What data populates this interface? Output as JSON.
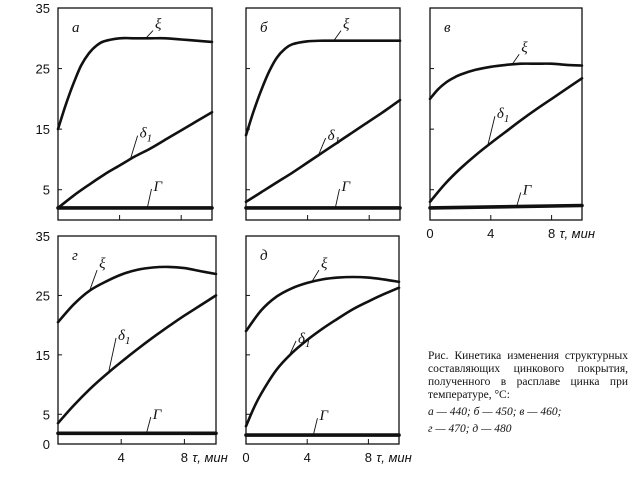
{
  "caption": {
    "text": "Рис. Кинетика изменения структурных составляющих цинкового покрытия, полученного в расплаве цинка при температуре, °С:",
    "legend_line1": "а — 440;  б — 450;  в — 460;",
    "legend_line2": "г — 470;  д — 480"
  },
  "chart_data": [
    {
      "type": "line",
      "panel_label": "а",
      "ylim": [
        0,
        35
      ],
      "xlim": [
        0,
        10
      ],
      "y_ticks": [
        "35",
        "25",
        "15",
        "5"
      ],
      "x_ticks": [],
      "series": [
        {
          "name": "ξ",
          "x": [
            0,
            0.5,
            1,
            1.5,
            2,
            2.5,
            3,
            4,
            5,
            6,
            7,
            8,
            9,
            10
          ],
          "y": [
            15,
            19,
            22.5,
            25.5,
            27.5,
            28.8,
            29.5,
            30,
            30,
            30,
            30,
            29.8,
            29.6,
            29.4
          ]
        },
        {
          "name": "δ1",
          "x": [
            0,
            1,
            2,
            3,
            4,
            5,
            6,
            7,
            8,
            9,
            10
          ],
          "y": [
            2,
            4,
            5.8,
            7.5,
            9,
            10.5,
            11.8,
            13.3,
            14.8,
            16.3,
            17.8
          ]
        },
        {
          "name": "Г",
          "x": [
            0,
            10
          ],
          "y": [
            2,
            2
          ]
        }
      ]
    },
    {
      "type": "line",
      "panel_label": "б",
      "ylim": [
        0,
        35
      ],
      "xlim": [
        0,
        10
      ],
      "y_ticks": [],
      "x_ticks": [],
      "series": [
        {
          "name": "ξ",
          "x": [
            0,
            0.5,
            1,
            1.5,
            2,
            2.5,
            3,
            4,
            5,
            6,
            7,
            8,
            9,
            10
          ],
          "y": [
            14,
            18,
            21.5,
            24.5,
            26.8,
            28.2,
            29,
            29.5,
            29.6,
            29.6,
            29.6,
            29.6,
            29.6,
            29.6
          ]
        },
        {
          "name": "δ1",
          "x": [
            0,
            1,
            2,
            3,
            4,
            5,
            6,
            7,
            8,
            9,
            10
          ],
          "y": [
            3,
            4.6,
            6.2,
            7.8,
            9.5,
            11.2,
            12.9,
            14.6,
            16.3,
            18,
            19.8
          ]
        },
        {
          "name": "Г",
          "x": [
            0,
            10
          ],
          "y": [
            2,
            2
          ]
        }
      ]
    },
    {
      "type": "line",
      "panel_label": "в",
      "ylim": [
        0,
        35
      ],
      "xlim": [
        0,
        10
      ],
      "y_ticks": [],
      "x_ticks": [
        "0",
        "4",
        "8"
      ],
      "xlabel": "τ, мин",
      "series": [
        {
          "name": "ξ",
          "x": [
            0,
            0.5,
            1,
            1.5,
            2,
            3,
            4,
            5,
            6,
            7,
            8,
            9,
            10
          ],
          "y": [
            20,
            21.5,
            22.6,
            23.4,
            24,
            24.8,
            25.3,
            25.6,
            25.8,
            25.8,
            25.8,
            25.6,
            25.5
          ]
        },
        {
          "name": "δ1",
          "x": [
            0,
            1,
            2,
            3,
            4,
            5,
            6,
            7,
            8,
            9,
            10
          ],
          "y": [
            3,
            6,
            8.5,
            10.7,
            12.7,
            14.6,
            16.5,
            18.3,
            20,
            21.7,
            23.4
          ]
        },
        {
          "name": "Г",
          "x": [
            0,
            10
          ],
          "y": [
            2,
            2.4
          ]
        }
      ]
    },
    {
      "type": "line",
      "panel_label": "г",
      "ylim": [
        0,
        35
      ],
      "xlim": [
        0,
        10
      ],
      "y_ticks": [
        "35",
        "25",
        "15",
        "5",
        "0"
      ],
      "x_ticks": [
        "4",
        "8"
      ],
      "xlabel": "τ, мин",
      "series": [
        {
          "name": "ξ",
          "x": [
            0,
            1,
            2,
            3,
            4,
            5,
            6,
            7,
            8,
            9,
            10
          ],
          "y": [
            20.5,
            23.5,
            25.8,
            27.3,
            28.5,
            29.3,
            29.7,
            29.8,
            29.6,
            29.1,
            28.6
          ]
        },
        {
          "name": "δ1",
          "x": [
            0,
            1,
            2,
            3,
            4,
            5,
            6,
            7,
            8,
            9,
            10
          ],
          "y": [
            3.5,
            6.5,
            9.2,
            11.6,
            13.8,
            15.9,
            17.9,
            19.8,
            21.6,
            23.3,
            25
          ]
        },
        {
          "name": "Г",
          "x": [
            0,
            10
          ],
          "y": [
            1.8,
            1.8
          ]
        }
      ]
    },
    {
      "type": "line",
      "panel_label": "д",
      "ylim": [
        0,
        35
      ],
      "xlim": [
        0,
        10
      ],
      "y_ticks": [],
      "x_ticks": [
        "0",
        "4",
        "8"
      ],
      "xlabel": "τ, мин",
      "series": [
        {
          "name": "ξ",
          "x": [
            0,
            1,
            2,
            3,
            4,
            5,
            6,
            7,
            8,
            9,
            10
          ],
          "y": [
            19,
            22.5,
            24.8,
            26.2,
            27.1,
            27.7,
            28,
            28.1,
            28,
            27.7,
            27.3
          ]
        },
        {
          "name": "δ1",
          "x": [
            0,
            0.5,
            1,
            2,
            3,
            4,
            5,
            6,
            7,
            8,
            9,
            10
          ],
          "y": [
            3,
            6,
            8.5,
            12.5,
            15.3,
            17.5,
            19.4,
            21.1,
            22.7,
            24,
            25.2,
            26.3
          ]
        },
        {
          "name": "Г",
          "x": [
            0,
            10
          ],
          "y": [
            1.5,
            1.5
          ]
        }
      ]
    }
  ]
}
